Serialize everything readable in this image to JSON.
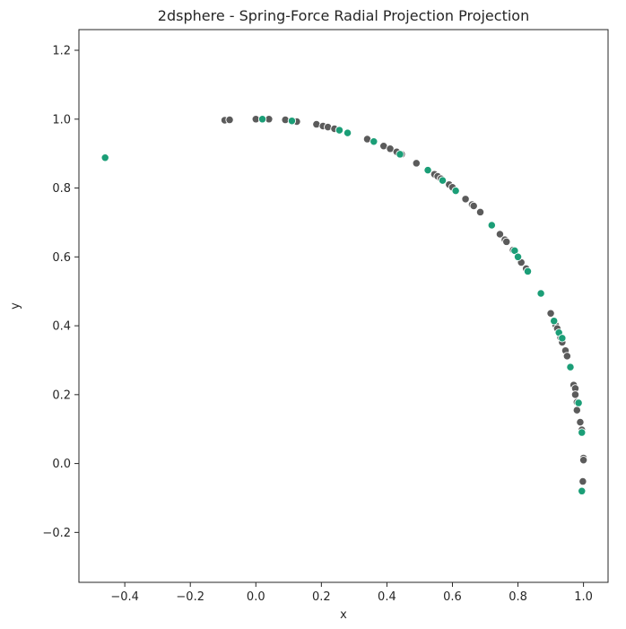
{
  "chart_data": {
    "type": "scatter",
    "title": "2dsphere - Spring-Force Radial Projection Projection",
    "xlabel": "x",
    "ylabel": "y",
    "xlim": [
      -0.54,
      1.075
    ],
    "ylim": [
      -0.345,
      1.26
    ],
    "xticks": [
      -0.4,
      -0.2,
      0.0,
      0.2,
      0.4,
      0.6,
      0.8,
      1.0
    ],
    "xtick_labels": [
      "−0.4",
      "−0.2",
      "0.0",
      "0.2",
      "0.4",
      "0.6",
      "0.8",
      "1.0"
    ],
    "yticks": [
      -0.2,
      0.0,
      0.2,
      0.4,
      0.6,
      0.8,
      1.0,
      1.2
    ],
    "ytick_labels": [
      "−0.2",
      "0.0",
      "0.2",
      "0.4",
      "0.6",
      "0.8",
      "1.0",
      "1.2"
    ],
    "grid": false,
    "legend": "none",
    "series": [
      {
        "color": "#5b5b5b",
        "points": [
          [
            -0.095,
            0.997
          ],
          [
            -0.08,
            0.998
          ],
          [
            0.0,
            1.0
          ],
          [
            0.04,
            1.0
          ],
          [
            0.09,
            0.998
          ],
          [
            0.125,
            0.993
          ],
          [
            0.185,
            0.985
          ],
          [
            0.205,
            0.98
          ],
          [
            0.22,
            0.977
          ],
          [
            0.24,
            0.972
          ],
          [
            0.34,
            0.942
          ],
          [
            0.39,
            0.922
          ],
          [
            0.41,
            0.914
          ],
          [
            0.43,
            0.905
          ],
          [
            0.445,
            0.898
          ],
          [
            0.49,
            0.872
          ],
          [
            0.545,
            0.84
          ],
          [
            0.555,
            0.834
          ],
          [
            0.565,
            0.827
          ],
          [
            0.59,
            0.81
          ],
          [
            0.6,
            0.802
          ],
          [
            0.64,
            0.768
          ],
          [
            0.66,
            0.752
          ],
          [
            0.665,
            0.748
          ],
          [
            0.685,
            0.73
          ],
          [
            0.745,
            0.666
          ],
          [
            0.76,
            0.65
          ],
          [
            0.765,
            0.644
          ],
          [
            0.785,
            0.62
          ],
          [
            0.81,
            0.584
          ],
          [
            0.825,
            0.566
          ],
          [
            0.9,
            0.436
          ],
          [
            0.915,
            0.402
          ],
          [
            0.92,
            0.392
          ],
          [
            0.93,
            0.366
          ],
          [
            0.935,
            0.352
          ],
          [
            0.945,
            0.328
          ],
          [
            0.95,
            0.312
          ],
          [
            0.97,
            0.228
          ],
          [
            0.975,
            0.218
          ],
          [
            0.975,
            0.2
          ],
          [
            0.98,
            0.178
          ],
          [
            0.98,
            0.155
          ],
          [
            0.99,
            0.12
          ],
          [
            0.995,
            0.098
          ],
          [
            1.0,
            0.016
          ],
          [
            1.0,
            0.01
          ],
          [
            0.998,
            -0.052
          ]
        ]
      },
      {
        "color": "#1b9e77",
        "points": [
          [
            -0.46,
            0.888
          ],
          [
            0.02,
            1.0
          ],
          [
            0.11,
            0.995
          ],
          [
            0.255,
            0.968
          ],
          [
            0.28,
            0.96
          ],
          [
            0.36,
            0.935
          ],
          [
            0.44,
            0.898
          ],
          [
            0.525,
            0.852
          ],
          [
            0.57,
            0.822
          ],
          [
            0.61,
            0.792
          ],
          [
            0.72,
            0.692
          ],
          [
            0.79,
            0.618
          ],
          [
            0.8,
            0.6
          ],
          [
            0.83,
            0.558
          ],
          [
            0.87,
            0.494
          ],
          [
            0.91,
            0.414
          ],
          [
            0.925,
            0.38
          ],
          [
            0.935,
            0.364
          ],
          [
            0.96,
            0.28
          ],
          [
            0.985,
            0.176
          ],
          [
            0.995,
            0.09
          ],
          [
            0.995,
            -0.08
          ]
        ]
      }
    ]
  }
}
